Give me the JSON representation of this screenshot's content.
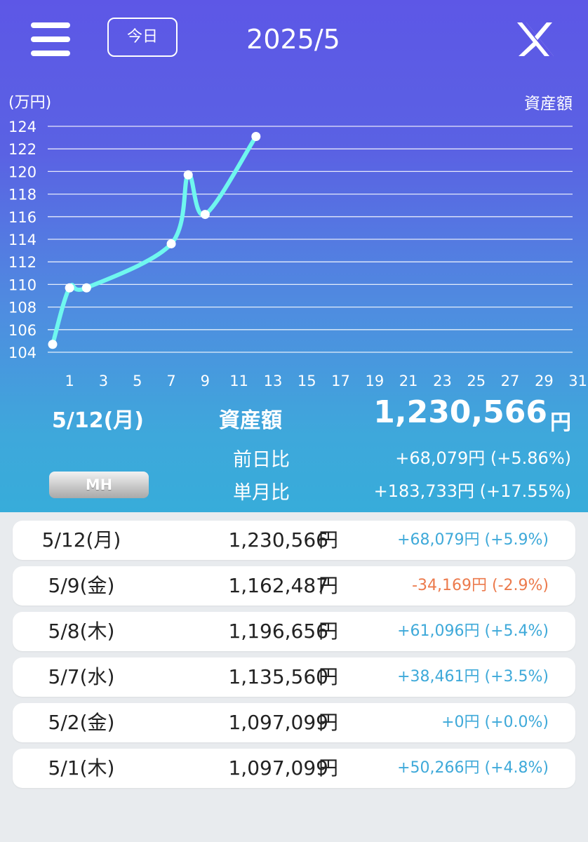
{
  "header": {
    "today_label": "今日",
    "month_title": "2025/5",
    "menu_icon": "hamburger-menu-icon",
    "share_icon": "x-logo-icon"
  },
  "colors": {
    "gradient_top": "#5d57e6",
    "gradient_bottom": "#37acda",
    "line": "#6ff7ef",
    "positive": "#3ea9d9",
    "negative": "#ec7a4c"
  },
  "chart_data": {
    "type": "line",
    "unit_label": "(万円)",
    "series_label": "資産額",
    "ylim": [
      104,
      124
    ],
    "y_ticks": [
      "104",
      "106",
      "108",
      "110",
      "112",
      "114",
      "116",
      "118",
      "120",
      "122",
      "124"
    ],
    "xlim": [
      0,
      31
    ],
    "x_ticks": [
      "1",
      "3",
      "5",
      "7",
      "9",
      "11",
      "13",
      "15",
      "17",
      "19",
      "21",
      "23",
      "25",
      "27",
      "29",
      "31"
    ],
    "grid": true,
    "points": [
      {
        "x": 0,
        "y": 104.7
      },
      {
        "x": 1,
        "y": 109.7
      },
      {
        "x": 2,
        "y": 109.7
      },
      {
        "x": 7,
        "y": 113.6
      },
      {
        "x": 8,
        "y": 119.7
      },
      {
        "x": 9,
        "y": 116.2
      },
      {
        "x": 12,
        "y": 123.1
      }
    ]
  },
  "summary": {
    "date": "5/12(月)",
    "label": "資産額",
    "value": "1,230,566",
    "unit": "円",
    "day_diff_label": "前日比",
    "day_diff_value": "+68,079円 (+5.86%)",
    "month_diff_label": "単月比",
    "month_diff_value": "+183,733円 (+17.55%)",
    "mh_button": "MH"
  },
  "history": [
    {
      "date": "5/12(月)",
      "value": "1,230,566",
      "unit": "円",
      "change": "+68,079円 (+5.9%)",
      "trend": "positive"
    },
    {
      "date": "5/9(金)",
      "value": "1,162,487",
      "unit": "円",
      "change": "-34,169円 (-2.9%)",
      "trend": "negative"
    },
    {
      "date": "5/8(木)",
      "value": "1,196,656",
      "unit": "円",
      "change": "+61,096円 (+5.4%)",
      "trend": "positive"
    },
    {
      "date": "5/7(水)",
      "value": "1,135,560",
      "unit": "円",
      "change": "+38,461円 (+3.5%)",
      "trend": "positive"
    },
    {
      "date": "5/2(金)",
      "value": "1,097,099",
      "unit": "円",
      "change": "+0円 (+0.0%)",
      "trend": "positive"
    },
    {
      "date": "5/1(木)",
      "value": "1,097,099",
      "unit": "円",
      "change": "+50,266円 (+4.8%)",
      "trend": "positive"
    }
  ]
}
